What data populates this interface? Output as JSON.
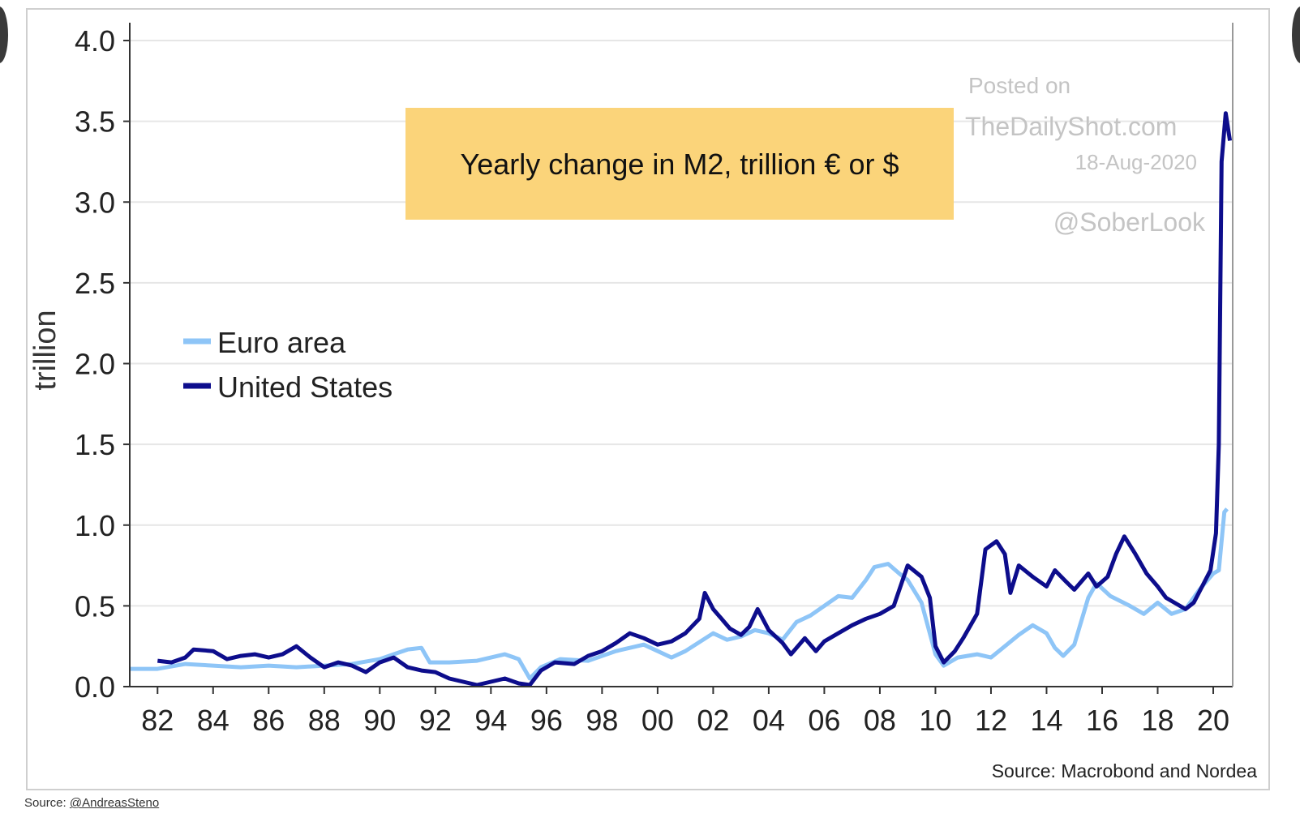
{
  "page": {
    "source_prefix": "Source: ",
    "source_handle": "@AndreasSteno"
  },
  "watermark": {
    "line1": "Posted on",
    "line2": "TheDailyShot.com",
    "line3": "18-Aug-2020",
    "line4": "@SoberLook"
  },
  "colors": {
    "euro": "#8ec5f7",
    "us": "#0d0d8c",
    "title_box": "#fbd47a",
    "grid": "#e6e6e6",
    "axis": "#333333"
  },
  "chart_data": {
    "type": "line",
    "title": "Yearly change in M2, trillion € or $",
    "ylabel": "trillion",
    "xlabel": "",
    "source": "Source: Macrobond and Nordea",
    "ylim": [
      0,
      4.0
    ],
    "xlim": [
      1981,
      2020.7
    ],
    "y_ticks": [
      "0.0",
      "0.5",
      "1.0",
      "1.5",
      "2.0",
      "2.5",
      "3.0",
      "3.5",
      "4.0"
    ],
    "x_ticks": [
      "82",
      "84",
      "86",
      "88",
      "90",
      "92",
      "94",
      "96",
      "98",
      "00",
      "02",
      "04",
      "06",
      "08",
      "10",
      "12",
      "14",
      "16",
      "18",
      "20"
    ],
    "legend_position": "left",
    "grid": true,
    "series": [
      {
        "name": "Euro area",
        "points": [
          [
            1981.0,
            0.11
          ],
          [
            1982.0,
            0.11
          ],
          [
            1983.0,
            0.14
          ],
          [
            1984.0,
            0.13
          ],
          [
            1985.0,
            0.12
          ],
          [
            1986.0,
            0.13
          ],
          [
            1987.0,
            0.12
          ],
          [
            1988.0,
            0.13
          ],
          [
            1989.0,
            0.14
          ],
          [
            1990.0,
            0.17
          ],
          [
            1990.5,
            0.2
          ],
          [
            1991.0,
            0.23
          ],
          [
            1991.5,
            0.24
          ],
          [
            1991.8,
            0.15
          ],
          [
            1992.5,
            0.15
          ],
          [
            1993.5,
            0.16
          ],
          [
            1994.5,
            0.2
          ],
          [
            1995.0,
            0.17
          ],
          [
            1995.4,
            0.05
          ],
          [
            1995.8,
            0.12
          ],
          [
            1996.5,
            0.17
          ],
          [
            1997.5,
            0.16
          ],
          [
            1998.5,
            0.22
          ],
          [
            1999.5,
            0.26
          ],
          [
            2000.5,
            0.18
          ],
          [
            2001.0,
            0.22
          ],
          [
            2002.0,
            0.33
          ],
          [
            2002.5,
            0.29
          ],
          [
            2003.0,
            0.31
          ],
          [
            2003.5,
            0.35
          ],
          [
            2004.0,
            0.33
          ],
          [
            2004.5,
            0.29
          ],
          [
            2005.0,
            0.4
          ],
          [
            2005.5,
            0.44
          ],
          [
            2006.0,
            0.5
          ],
          [
            2006.5,
            0.56
          ],
          [
            2007.0,
            0.55
          ],
          [
            2007.5,
            0.66
          ],
          [
            2007.8,
            0.74
          ],
          [
            2008.3,
            0.76
          ],
          [
            2008.7,
            0.7
          ],
          [
            2009.0,
            0.66
          ],
          [
            2009.5,
            0.52
          ],
          [
            2010.0,
            0.2
          ],
          [
            2010.3,
            0.13
          ],
          [
            2010.8,
            0.18
          ],
          [
            2011.5,
            0.2
          ],
          [
            2012.0,
            0.18
          ],
          [
            2012.5,
            0.25
          ],
          [
            2013.0,
            0.32
          ],
          [
            2013.5,
            0.38
          ],
          [
            2014.0,
            0.33
          ],
          [
            2014.3,
            0.24
          ],
          [
            2014.6,
            0.19
          ],
          [
            2015.0,
            0.26
          ],
          [
            2015.5,
            0.55
          ],
          [
            2015.8,
            0.64
          ],
          [
            2016.3,
            0.56
          ],
          [
            2017.0,
            0.5
          ],
          [
            2017.5,
            0.45
          ],
          [
            2018.0,
            0.52
          ],
          [
            2018.5,
            0.45
          ],
          [
            2019.0,
            0.48
          ],
          [
            2019.5,
            0.6
          ],
          [
            2020.0,
            0.7
          ],
          [
            2020.2,
            0.72
          ],
          [
            2020.4,
            1.08
          ],
          [
            2020.5,
            1.1
          ]
        ]
      },
      {
        "name": "United States",
        "points": [
          [
            1982.0,
            0.16
          ],
          [
            1982.5,
            0.15
          ],
          [
            1983.0,
            0.18
          ],
          [
            1983.3,
            0.23
          ],
          [
            1984.0,
            0.22
          ],
          [
            1984.5,
            0.17
          ],
          [
            1985.0,
            0.19
          ],
          [
            1985.5,
            0.2
          ],
          [
            1986.0,
            0.18
          ],
          [
            1986.5,
            0.2
          ],
          [
            1987.0,
            0.25
          ],
          [
            1987.5,
            0.18
          ],
          [
            1988.0,
            0.12
          ],
          [
            1988.5,
            0.15
          ],
          [
            1989.0,
            0.13
          ],
          [
            1989.5,
            0.09
          ],
          [
            1990.0,
            0.15
          ],
          [
            1990.5,
            0.18
          ],
          [
            1991.0,
            0.12
          ],
          [
            1991.5,
            0.1
          ],
          [
            1992.0,
            0.09
          ],
          [
            1992.5,
            0.05
          ],
          [
            1993.0,
            0.03
          ],
          [
            1993.5,
            0.01
          ],
          [
            1994.0,
            0.03
          ],
          [
            1994.5,
            0.05
          ],
          [
            1995.0,
            0.02
          ],
          [
            1995.4,
            0.01
          ],
          [
            1995.8,
            0.1
          ],
          [
            1996.3,
            0.15
          ],
          [
            1997.0,
            0.14
          ],
          [
            1997.5,
            0.19
          ],
          [
            1998.0,
            0.22
          ],
          [
            1998.5,
            0.27
          ],
          [
            1999.0,
            0.33
          ],
          [
            1999.5,
            0.3
          ],
          [
            2000.0,
            0.26
          ],
          [
            2000.5,
            0.28
          ],
          [
            2001.0,
            0.33
          ],
          [
            2001.5,
            0.42
          ],
          [
            2001.7,
            0.58
          ],
          [
            2002.0,
            0.48
          ],
          [
            2002.3,
            0.42
          ],
          [
            2002.6,
            0.36
          ],
          [
            2003.0,
            0.32
          ],
          [
            2003.3,
            0.37
          ],
          [
            2003.6,
            0.48
          ],
          [
            2004.0,
            0.35
          ],
          [
            2004.5,
            0.27
          ],
          [
            2004.8,
            0.2
          ],
          [
            2005.3,
            0.3
          ],
          [
            2005.7,
            0.22
          ],
          [
            2006.0,
            0.28
          ],
          [
            2006.5,
            0.33
          ],
          [
            2007.0,
            0.38
          ],
          [
            2007.5,
            0.42
          ],
          [
            2008.0,
            0.45
          ],
          [
            2008.5,
            0.5
          ],
          [
            2009.0,
            0.75
          ],
          [
            2009.5,
            0.68
          ],
          [
            2009.8,
            0.55
          ],
          [
            2010.0,
            0.25
          ],
          [
            2010.3,
            0.15
          ],
          [
            2010.7,
            0.22
          ],
          [
            2011.0,
            0.3
          ],
          [
            2011.5,
            0.45
          ],
          [
            2011.8,
            0.85
          ],
          [
            2012.2,
            0.9
          ],
          [
            2012.5,
            0.82
          ],
          [
            2012.7,
            0.58
          ],
          [
            2013.0,
            0.75
          ],
          [
            2013.5,
            0.68
          ],
          [
            2014.0,
            0.62
          ],
          [
            2014.3,
            0.72
          ],
          [
            2014.7,
            0.65
          ],
          [
            2015.0,
            0.6
          ],
          [
            2015.5,
            0.7
          ],
          [
            2015.8,
            0.62
          ],
          [
            2016.2,
            0.68
          ],
          [
            2016.5,
            0.82
          ],
          [
            2016.8,
            0.93
          ],
          [
            2017.2,
            0.82
          ],
          [
            2017.6,
            0.7
          ],
          [
            2018.0,
            0.62
          ],
          [
            2018.3,
            0.55
          ],
          [
            2018.6,
            0.52
          ],
          [
            2019.0,
            0.48
          ],
          [
            2019.3,
            0.52
          ],
          [
            2019.6,
            0.62
          ],
          [
            2019.9,
            0.72
          ],
          [
            2020.1,
            0.95
          ],
          [
            2020.2,
            1.5
          ],
          [
            2020.3,
            3.25
          ],
          [
            2020.45,
            3.55
          ],
          [
            2020.6,
            3.38
          ]
        ]
      }
    ]
  }
}
